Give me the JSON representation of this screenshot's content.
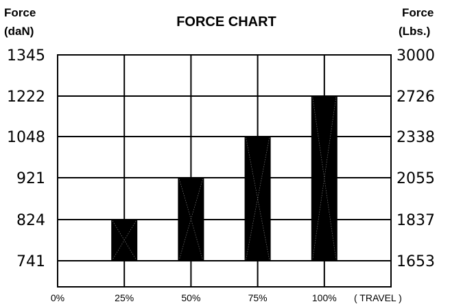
{
  "chart_data": {
    "type": "bar",
    "title": "FORCE CHART",
    "left_axis": {
      "label_line1": "Force",
      "label_line2": "(daN)"
    },
    "right_axis": {
      "label_line1": "Force",
      "label_line2": "(Lbs.)"
    },
    "y_ticks_left": [
      "1345",
      "1222",
      "1048",
      "921",
      "824",
      "741"
    ],
    "y_ticks_right": [
      "3000",
      "2726",
      "2338",
      "2055",
      "1837",
      "1653"
    ],
    "x_ticks": [
      "0%",
      "25%",
      "50%",
      "75%",
      "100%"
    ],
    "x_axis_label": "( TRAVEL )",
    "categories": [
      "25%",
      "50%",
      "75%",
      "100%"
    ],
    "series": [
      {
        "values_daN": [
          824,
          921,
          1048,
          1222
        ],
        "values_lbs": [
          1837,
          2055,
          2338,
          2726
        ],
        "base_daN": 741,
        "base_lbs": 1653
      }
    ],
    "bar_color": "#000000",
    "grid": true
  }
}
